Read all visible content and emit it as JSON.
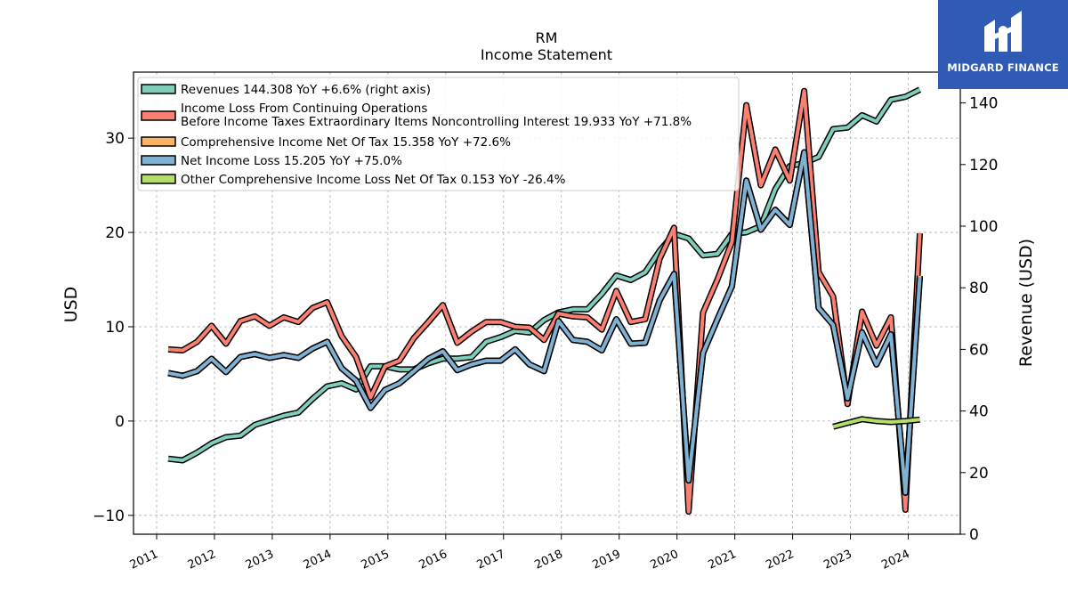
{
  "logo": {
    "text": "MIDGARD FINANCE"
  },
  "chart_data": {
    "type": "line",
    "title": "RM",
    "subtitle": "Income Statement",
    "ylabel": "USD",
    "ylabel_right": "Revenue (USD)",
    "ylim": [
      -12,
      37
    ],
    "ylim_right": [
      0,
      150
    ],
    "yticks": [
      -10,
      0,
      10,
      20,
      30
    ],
    "yticks_right": [
      0,
      20,
      40,
      60,
      80,
      100,
      120,
      140
    ],
    "xlim": [
      2010.6,
      2024.9
    ],
    "xticks": [
      "2011",
      "2012",
      "2013",
      "2014",
      "2015",
      "2016",
      "2017",
      "2018",
      "2019",
      "2020",
      "2021",
      "2022",
      "2023",
      "2024"
    ],
    "grid": true,
    "legend_position": "top-left",
    "series": [
      {
        "name": "Revenues",
        "legend": "Revenues  144.308 YoY +6.6% (right axis)",
        "axis": "right",
        "color": "#7fcdbb",
        "x": [
          2011.2,
          2011.45,
          2011.7,
          2011.95,
          2012.2,
          2012.45,
          2012.7,
          2012.95,
          2013.2,
          2013.45,
          2013.7,
          2013.95,
          2014.2,
          2014.45,
          2014.7,
          2014.95,
          2015.2,
          2015.45,
          2015.7,
          2015.95,
          2016.2,
          2016.45,
          2016.7,
          2016.95,
          2017.2,
          2017.45,
          2017.7,
          2017.95,
          2018.2,
          2018.45,
          2018.7,
          2018.95,
          2019.2,
          2019.45,
          2019.7,
          2019.95,
          2020.2,
          2020.45,
          2020.7,
          2020.95,
          2021.2,
          2021.45,
          2021.7,
          2021.95,
          2022.2,
          2022.45,
          2022.7,
          2022.95,
          2023.2,
          2023.45,
          2023.7,
          2023.95,
          2024.2
        ],
        "values": [
          24.5,
          24,
          26.5,
          29.5,
          31.5,
          32,
          35.5,
          37,
          38.5,
          39.5,
          44,
          48,
          49,
          47,
          54.5,
          54.5,
          53.5,
          53.5,
          55.5,
          57,
          57,
          57.5,
          62.5,
          64,
          66,
          65.5,
          69.5,
          72,
          73,
          73,
          78,
          84,
          82.5,
          85,
          92,
          97.5,
          96,
          90.5,
          91,
          97.5,
          98,
          100,
          112,
          119.5,
          120.5,
          122.5,
          131.5,
          132,
          136,
          134,
          141,
          142,
          144.3
        ]
      },
      {
        "name": "Income Loss From Continuing Operations Before Income Taxes Extraordinary Items Noncontrolling Interest",
        "legend_lines": [
          "Income Loss From Continuing Operations",
          "Before Income Taxes Extraordinary Items Noncontrolling Interest  19.933 YoY +71.8%"
        ],
        "axis": "left",
        "color": "#fb8072",
        "x": [
          2011.2,
          2011.45,
          2011.7,
          2011.95,
          2012.2,
          2012.45,
          2012.7,
          2012.95,
          2013.2,
          2013.45,
          2013.7,
          2013.95,
          2014.2,
          2014.45,
          2014.7,
          2014.95,
          2015.2,
          2015.45,
          2015.7,
          2015.95,
          2016.2,
          2016.45,
          2016.7,
          2016.95,
          2017.2,
          2017.45,
          2017.7,
          2017.95,
          2018.2,
          2018.45,
          2018.7,
          2018.95,
          2019.2,
          2019.45,
          2019.7,
          2019.95,
          2020.2,
          2020.45,
          2020.7,
          2020.95,
          2021.2,
          2021.45,
          2021.7,
          2021.95,
          2022.2,
          2022.45,
          2022.7,
          2022.95,
          2023.2,
          2023.45,
          2023.7,
          2023.95,
          2024.2
        ],
        "values": [
          7.6,
          7.5,
          8.4,
          10.1,
          8.2,
          10.6,
          11.1,
          10.1,
          11,
          10.5,
          12,
          12.6,
          9,
          6.8,
          2.5,
          5.8,
          6.4,
          8.8,
          10.5,
          12.3,
          8.3,
          9.5,
          10.5,
          10.5,
          10,
          9.9,
          8.6,
          11.4,
          11.1,
          11,
          9.7,
          13.8,
          10.5,
          10.8,
          17.2,
          20.5,
          -9.6,
          11.5,
          15,
          19,
          33.5,
          25,
          28.8,
          25.5,
          35,
          15.8,
          13.2,
          1.8,
          11.6,
          8,
          11,
          -9.4,
          19.9
        ]
      },
      {
        "name": "Comprehensive Income Net Of Tax",
        "legend": "Comprehensive Income Net Of Tax  15.358 YoY +72.6%",
        "axis": "left",
        "color": "#fdb462",
        "x": [
          2011.2,
          2011.45,
          2011.7,
          2011.95,
          2012.2,
          2012.45,
          2012.7,
          2012.95,
          2013.2,
          2013.45,
          2013.7,
          2013.95,
          2014.2,
          2014.45,
          2014.7,
          2014.95,
          2015.2,
          2015.45,
          2015.7,
          2015.95,
          2016.2,
          2016.45,
          2016.7,
          2016.95,
          2017.2,
          2017.45,
          2017.7,
          2017.95,
          2018.2,
          2018.45,
          2018.7,
          2018.95,
          2019.2,
          2019.45,
          2019.7,
          2019.95,
          2020.2,
          2020.45,
          2020.7,
          2020.95,
          2021.2,
          2021.45,
          2021.7,
          2021.95,
          2022.2,
          2022.45,
          2022.7,
          2022.95,
          2023.2,
          2023.45,
          2023.7,
          2023.95,
          2024.2
        ],
        "values": [
          5.1,
          4.8,
          5.3,
          6.6,
          5.2,
          6.8,
          7.1,
          6.7,
          7,
          6.7,
          7.7,
          8.4,
          5.6,
          4.3,
          1.4,
          3.3,
          4,
          5.3,
          6.6,
          7.4,
          5.4,
          6,
          6.4,
          6.4,
          7.6,
          6,
          5.3,
          10.6,
          8.6,
          8.4,
          7.5,
          10.8,
          8.2,
          8.3,
          12.8,
          15.6,
          -6.3,
          7.2,
          10.8,
          14.3,
          25.5,
          20.3,
          22.4,
          20.8,
          28.5,
          12,
          10.2,
          2.4,
          9.4,
          6,
          9.2,
          -7.6,
          15.4
        ]
      },
      {
        "name": "Net Income Loss",
        "legend": "Net Income Loss  15.205 YoY +75.0%",
        "axis": "left",
        "color": "#80b1d3",
        "x": [
          2011.2,
          2011.45,
          2011.7,
          2011.95,
          2012.2,
          2012.45,
          2012.7,
          2012.95,
          2013.2,
          2013.45,
          2013.7,
          2013.95,
          2014.2,
          2014.45,
          2014.7,
          2014.95,
          2015.2,
          2015.45,
          2015.7,
          2015.95,
          2016.2,
          2016.45,
          2016.7,
          2016.95,
          2017.2,
          2017.45,
          2017.7,
          2017.95,
          2018.2,
          2018.45,
          2018.7,
          2018.95,
          2019.2,
          2019.45,
          2019.7,
          2019.95,
          2020.2,
          2020.45,
          2020.7,
          2020.95,
          2021.2,
          2021.45,
          2021.7,
          2021.95,
          2022.2,
          2022.45,
          2022.7,
          2022.95,
          2023.2,
          2023.45,
          2023.7,
          2023.95,
          2024.2
        ],
        "values": [
          5.1,
          4.8,
          5.3,
          6.6,
          5.2,
          6.8,
          7.1,
          6.7,
          7,
          6.7,
          7.7,
          8.4,
          5.6,
          4.3,
          1.4,
          3.3,
          4,
          5.3,
          6.6,
          7.4,
          5.4,
          6,
          6.4,
          6.4,
          7.6,
          6,
          5.3,
          10.6,
          8.6,
          8.4,
          7.5,
          10.8,
          8.2,
          8.3,
          12.8,
          15.6,
          -6.3,
          7.2,
          10.8,
          14.3,
          25.5,
          20.3,
          22.4,
          20.8,
          28.5,
          12,
          10.2,
          2.4,
          9.4,
          6,
          9.2,
          -7.6,
          15.2
        ]
      },
      {
        "name": "Other Comprehensive Income Loss Net Of Tax",
        "legend": "Other Comprehensive Income Loss Net Of Tax  0.153 YoY -26.4%",
        "axis": "left",
        "color": "#b3de69",
        "x": [
          2022.7,
          2022.95,
          2023.2,
          2023.45,
          2023.7,
          2023.95,
          2024.2
        ],
        "values": [
          -0.6,
          -0.2,
          0.2,
          0,
          -0.1,
          0,
          0.15
        ]
      }
    ]
  }
}
